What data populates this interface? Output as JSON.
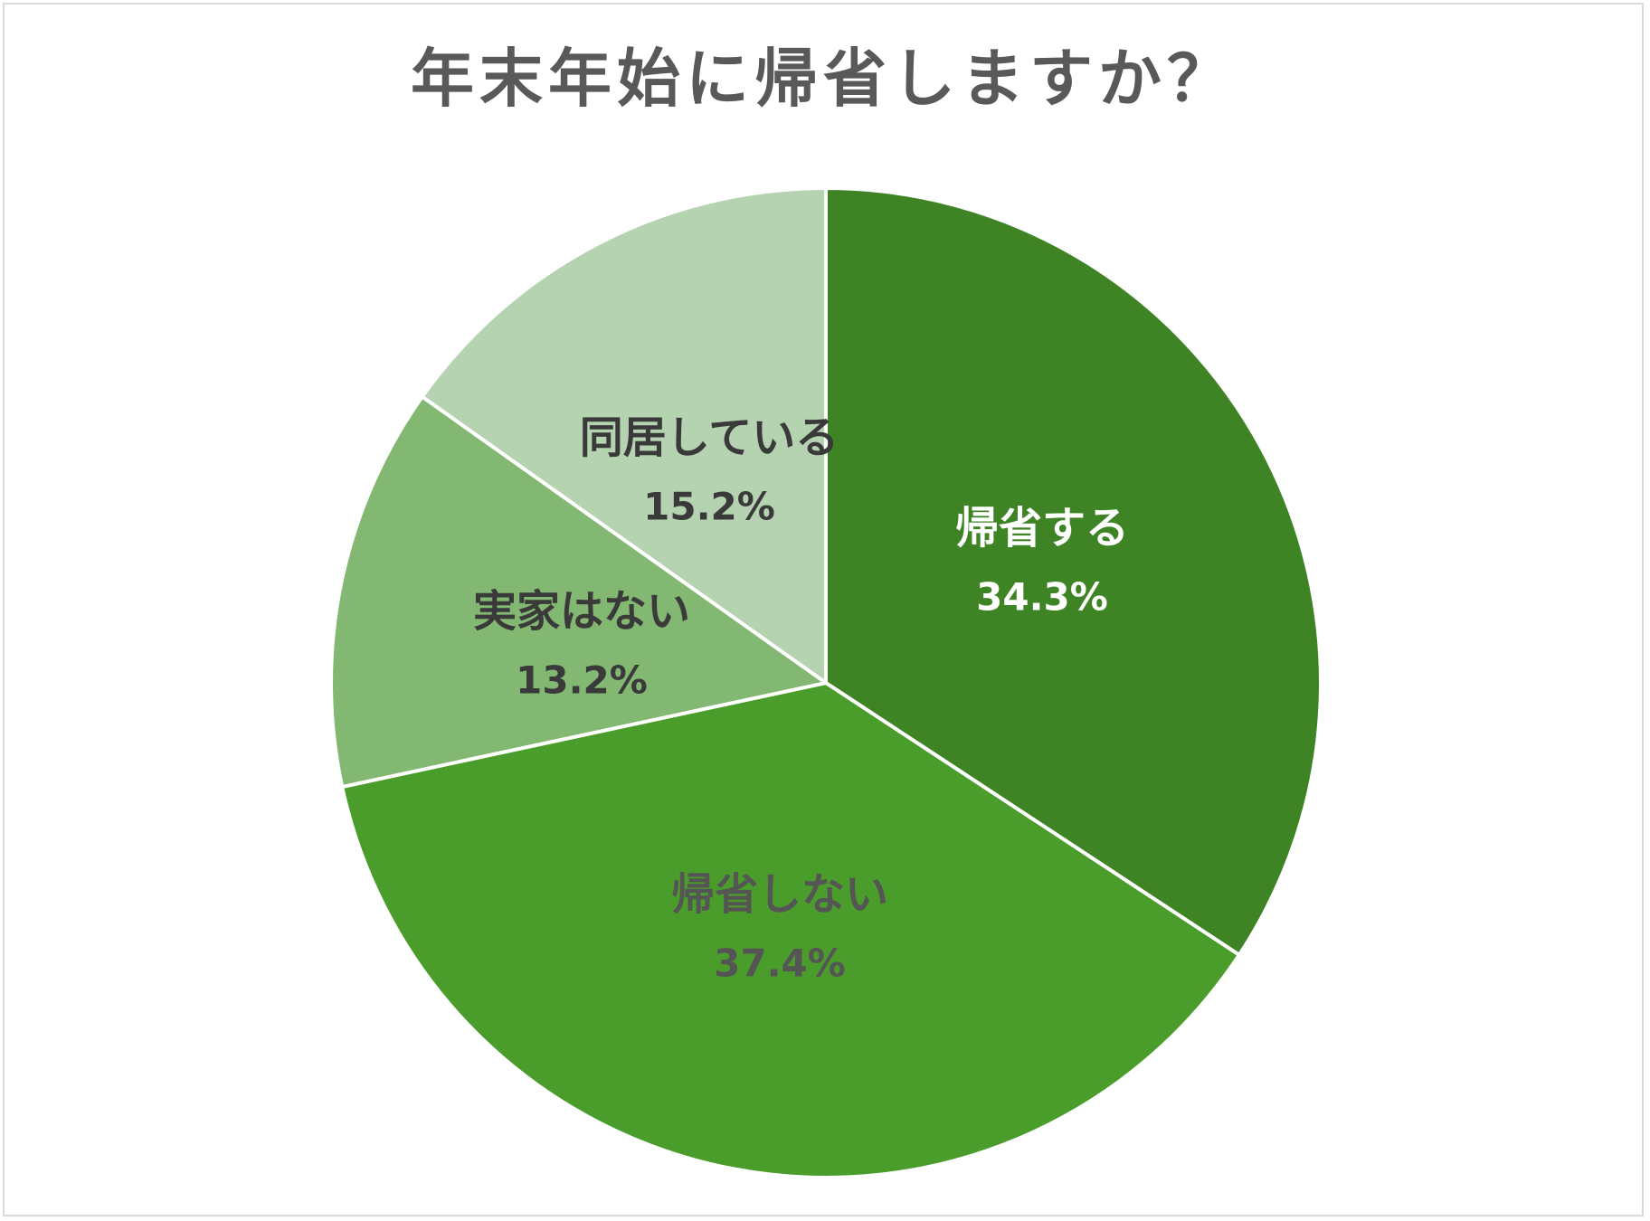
{
  "chart_data": {
    "type": "pie",
    "title": "年末年始に帰省しますか？",
    "start_angle_deg": 0,
    "direction": "clockwise",
    "slices": [
      {
        "label": "帰省する",
        "value": 34.3,
        "display": "34.3%",
        "color": "#3e8425",
        "text_color": "#ffffff"
      },
      {
        "label": "帰省しない",
        "value": 37.4,
        "display": "37.4%",
        "color": "#4a9c2b",
        "text_color": "#555555"
      },
      {
        "label": "実家はない",
        "value": 13.2,
        "display": "13.2%",
        "color": "#82b872",
        "text_color": "#3a3a3a"
      },
      {
        "label": "同居している",
        "value": 15.2,
        "display": "15.2%",
        "color": "#b5d2b1",
        "text_color": "#3a3a3a"
      }
    ]
  }
}
